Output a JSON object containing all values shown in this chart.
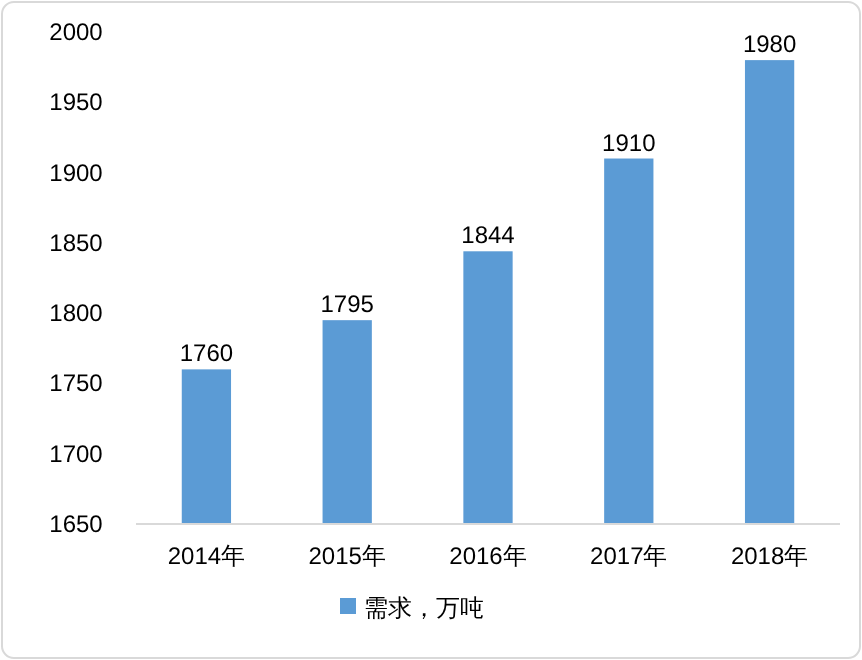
{
  "chart_data": {
    "type": "bar",
    "categories": [
      "2014年",
      "2015年",
      "2016年",
      "2017年",
      "2018年"
    ],
    "series": [
      {
        "name": "需求，万吨",
        "color": "#5b9bd5",
        "values": [
          1760,
          1795,
          1844,
          1910,
          1980
        ]
      }
    ],
    "ylim": [
      1650,
      2000
    ],
    "yticks": [
      1650,
      1700,
      1750,
      1800,
      1850,
      1900,
      1950,
      2000
    ],
    "data_labels": true,
    "legend": "bottom"
  }
}
